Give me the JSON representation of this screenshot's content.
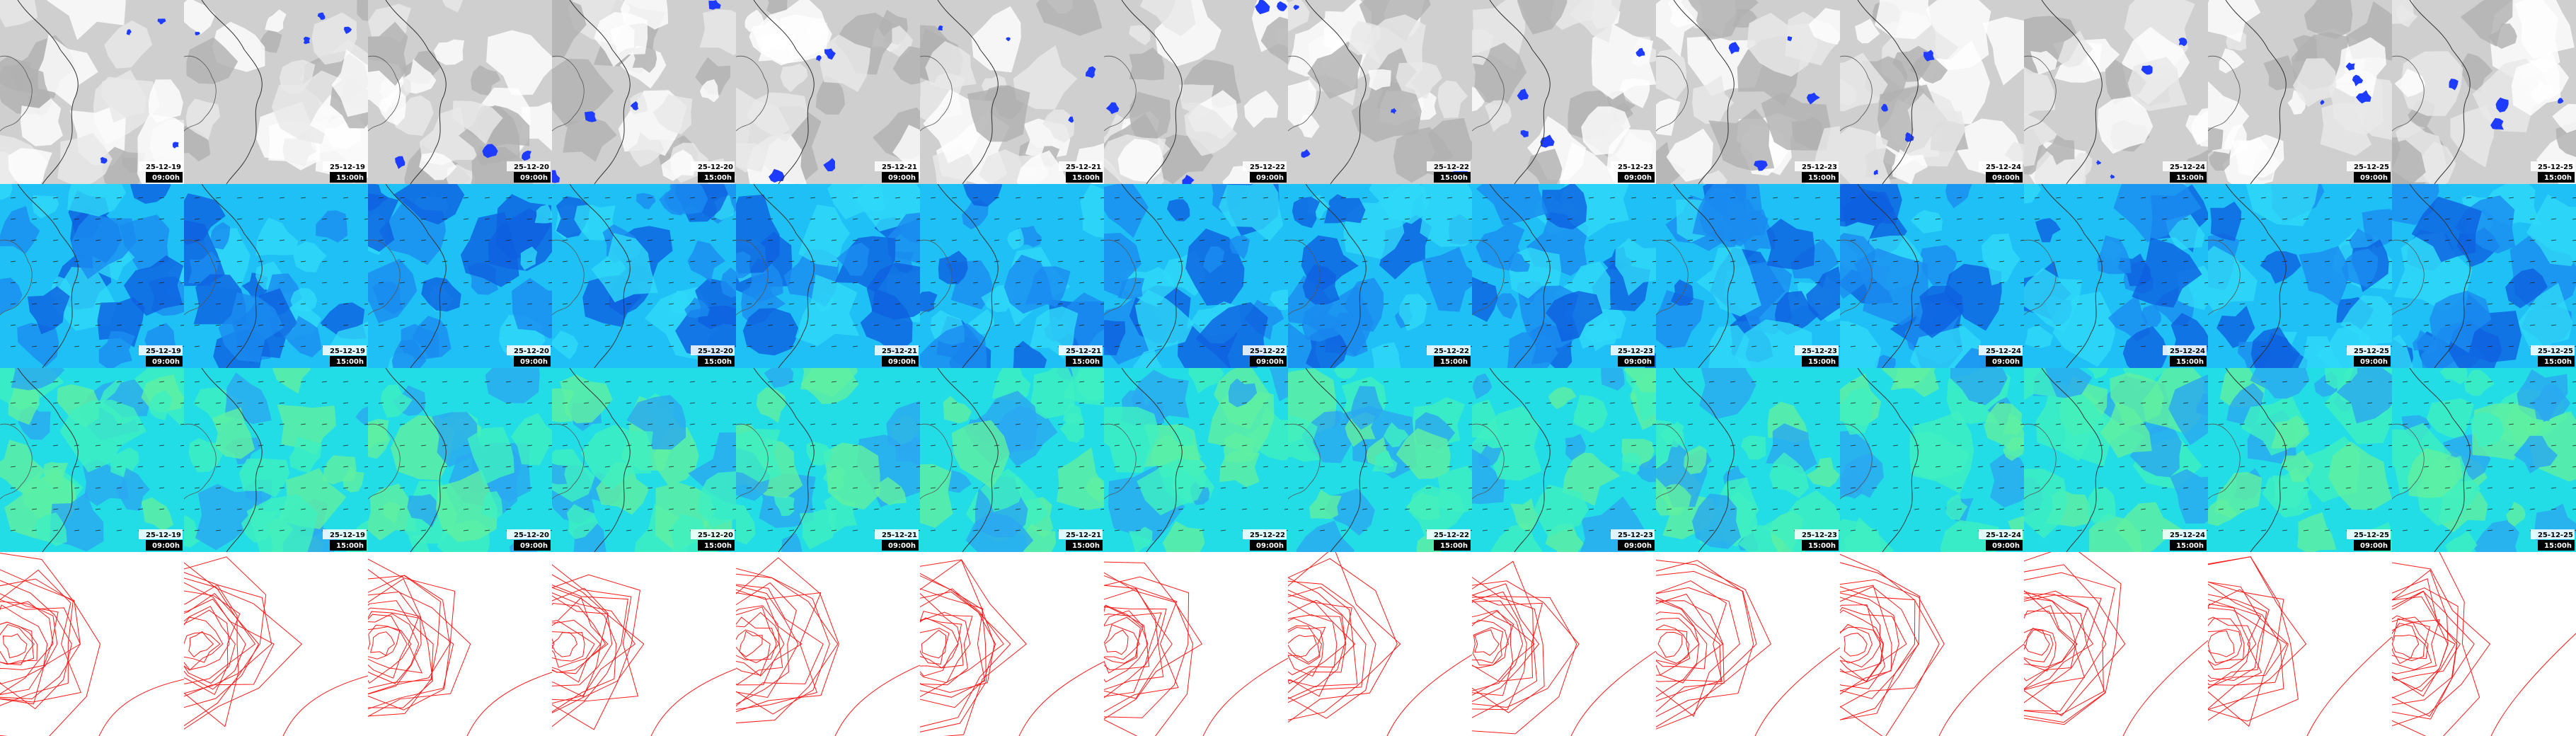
{
  "rows": [
    {
      "panels": [
        {
          "date": "25-12-19",
          "time": "09:00h"
        },
        {
          "date": "25-12-19",
          "time": "15:00h"
        },
        {
          "date": "25-12-20",
          "time": "09:00h"
        },
        {
          "date": "25-12-20",
          "time": "15:00h"
        },
        {
          "date": "25-12-21",
          "time": "09:00h"
        },
        {
          "date": "25-12-21",
          "time": "15:00h"
        },
        {
          "date": "25-12-22",
          "time": "09:00h"
        },
        {
          "date": "25-12-22",
          "time": "15:00h"
        },
        {
          "date": "25-12-23",
          "time": "09:00h"
        },
        {
          "date": "25-12-23",
          "time": "15:00h"
        },
        {
          "date": "25-12-24",
          "time": "09:00h"
        },
        {
          "date": "25-12-24",
          "time": "15:00h"
        },
        {
          "date": "25-12-25",
          "time": "09:00h"
        },
        {
          "date": "25-12-25",
          "time": "15:00h"
        }
      ]
    },
    {
      "panels": [
        {
          "date": "25-12-19",
          "time": "09:00h"
        },
        {
          "date": "25-12-19",
          "time": "15:00h"
        },
        {
          "date": "25-12-20",
          "time": "09:00h"
        },
        {
          "date": "25-12-20",
          "time": "15:00h"
        },
        {
          "date": "25-12-21",
          "time": "09:00h"
        },
        {
          "date": "25-12-21",
          "time": "15:00h"
        },
        {
          "date": "25-12-22",
          "time": "09:00h"
        },
        {
          "date": "25-12-22",
          "time": "15:00h"
        },
        {
          "date": "25-12-23",
          "time": "09:00h"
        },
        {
          "date": "25-12-23",
          "time": "15:00h"
        },
        {
          "date": "25-12-24",
          "time": "09:00h"
        },
        {
          "date": "25-12-24",
          "time": "15:00h"
        },
        {
          "date": "25-12-25",
          "time": "09:00h"
        },
        {
          "date": "25-12-25",
          "time": "15:00h"
        }
      ]
    },
    {
      "panels": [
        {
          "date": "25-12-19",
          "time": "09:00h"
        },
        {
          "date": "25-12-19",
          "time": "15:00h"
        },
        {
          "date": "25-12-20",
          "time": "09:00h"
        },
        {
          "date": "25-12-20",
          "time": "15:00h"
        },
        {
          "date": "25-12-21",
          "time": "09:00h"
        },
        {
          "date": "25-12-21",
          "time": "15:00h"
        },
        {
          "date": "25-12-22",
          "time": "09:00h"
        },
        {
          "date": "25-12-22",
          "time": "15:00h"
        },
        {
          "date": "25-12-23",
          "time": "09:00h"
        },
        {
          "date": "25-12-23",
          "time": "15:00h"
        },
        {
          "date": "25-12-24",
          "time": "09:00h"
        },
        {
          "date": "25-12-24",
          "time": "15:00h"
        },
        {
          "date": "25-12-25",
          "time": "09:00h"
        },
        {
          "date": "25-12-25",
          "time": "15:00h"
        }
      ]
    },
    {
      "panels": []
    }
  ]
}
